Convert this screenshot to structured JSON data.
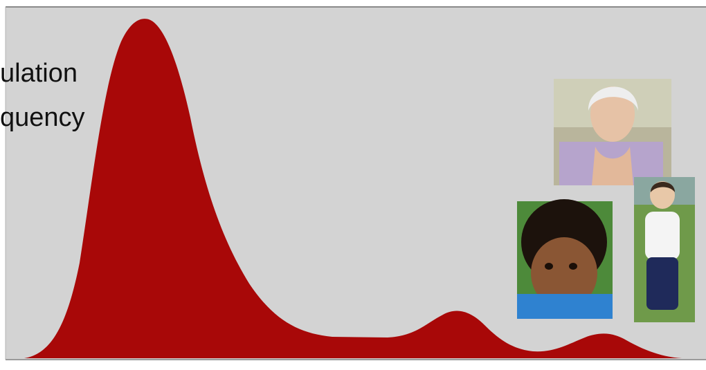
{
  "label": {
    "line1": "ulation",
    "line2": "quency"
  }
}
